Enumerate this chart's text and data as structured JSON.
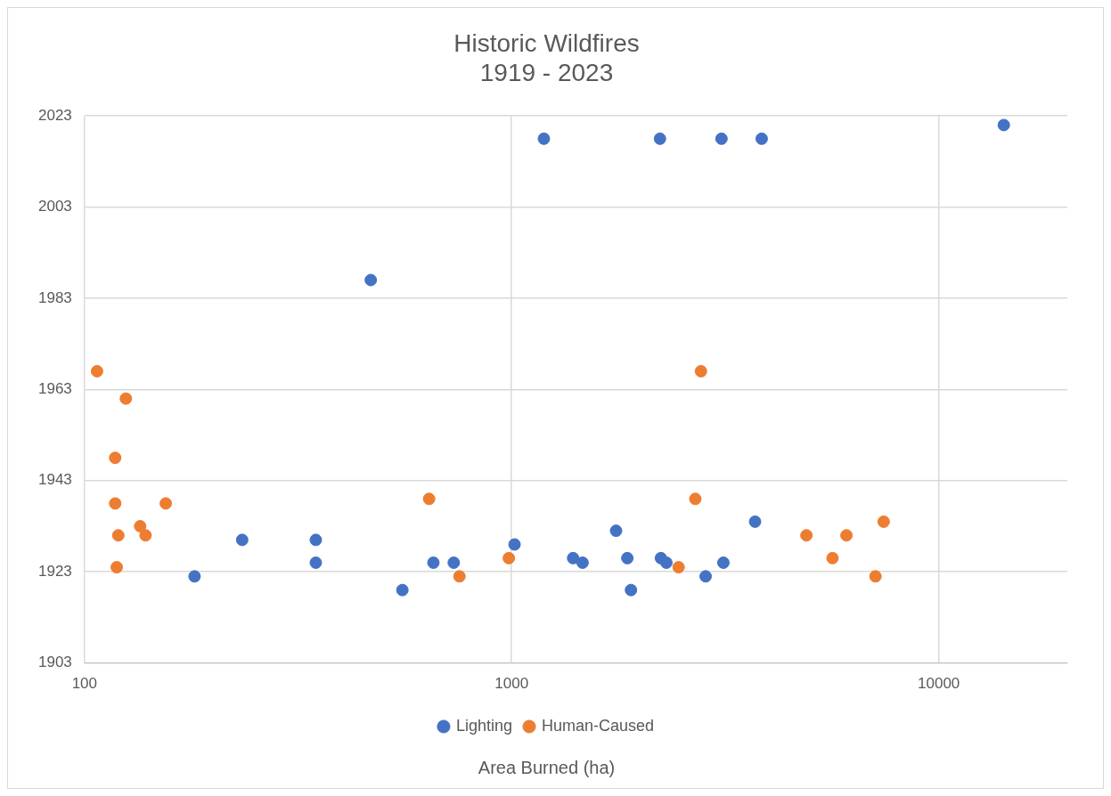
{
  "chart_data": {
    "type": "scatter",
    "title": "Historic Wildfires\n1919 - 2023",
    "xlabel": "Area Burned (ha)",
    "log": "x",
    "xlim": [
      100,
      20000
    ],
    "xticks": [
      100,
      1000,
      10000
    ],
    "ylim": [
      1903,
      2023
    ],
    "yticks": [
      1903,
      1923,
      1943,
      1963,
      1983,
      2003,
      2023
    ],
    "grid": true,
    "legend": "bottom",
    "marker": "circle",
    "series": [
      {
        "name": "Lighting",
        "color": "#4472c4",
        "x": [
          14200,
          1190,
          2225,
          3100,
          3850,
          468,
          181,
          234,
          348,
          348,
          555,
          656,
          732,
          1016,
          1393,
          1466,
          1756,
          1866,
          1903,
          2236,
          2303,
          2846,
          3132,
          3715
        ],
        "values": [
          2021,
          2018,
          2018,
          2018,
          2018,
          1987,
          1922,
          1930,
          1930,
          1925,
          1919,
          1925,
          1925,
          1929,
          1926,
          1925,
          1932,
          1926,
          1919,
          1926,
          1925,
          1922,
          1925,
          1934
        ]
      },
      {
        "name": "Human-Caused",
        "color": "#ed7d31",
        "x": [
          107,
          125,
          118,
          118,
          120,
          119,
          135,
          139,
          155,
          641,
          755,
          985,
          2775,
          2692,
          2460,
          4900,
          5640,
          6080,
          7110,
          7430
        ],
        "values": [
          1967,
          1961,
          1948,
          1938,
          1931,
          1924,
          1933,
          1931,
          1938,
          1939,
          1922,
          1926,
          1967,
          1939,
          1924,
          1931,
          1926,
          1931,
          1922,
          1934
        ]
      }
    ]
  }
}
